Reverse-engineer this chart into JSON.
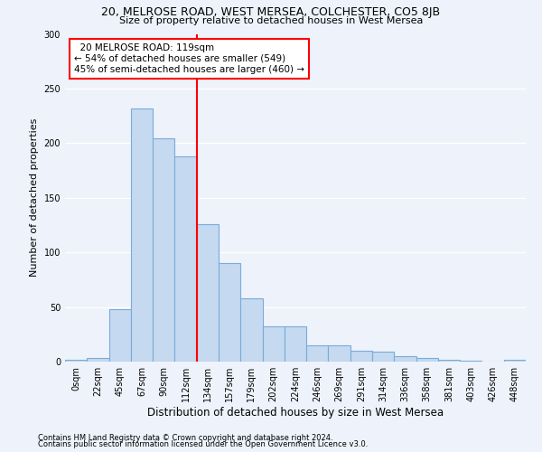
{
  "title1": "20, MELROSE ROAD, WEST MERSEA, COLCHESTER, CO5 8JB",
  "title2": "Size of property relative to detached houses in West Mersea",
  "xlabel": "Distribution of detached houses by size in West Mersea",
  "ylabel": "Number of detached properties",
  "footnote1": "Contains HM Land Registry data © Crown copyright and database right 2024.",
  "footnote2": "Contains public sector information licensed under the Open Government Licence v3.0.",
  "annotation_line1": "  20 MELROSE ROAD: 119sqm",
  "annotation_line2": "← 54% of detached houses are smaller (549)",
  "annotation_line3": "45% of semi-detached houses are larger (460) →",
  "bar_labels": [
    "0sqm",
    "22sqm",
    "45sqm",
    "67sqm",
    "90sqm",
    "112sqm",
    "134sqm",
    "157sqm",
    "179sqm",
    "202sqm",
    "224sqm",
    "246sqm",
    "269sqm",
    "291sqm",
    "314sqm",
    "336sqm",
    "358sqm",
    "381sqm",
    "403sqm",
    "426sqm",
    "448sqm"
  ],
  "bar_values": [
    2,
    3,
    48,
    232,
    204,
    188,
    126,
    90,
    58,
    32,
    32,
    15,
    15,
    10,
    9,
    5,
    3,
    2,
    1,
    0,
    2
  ],
  "bar_color": "#c5d9f0",
  "bar_edge_color": "#7aabda",
  "vline_x": 5.5,
  "vline_color": "red",
  "ylim": [
    0,
    300
  ],
  "yticks": [
    0,
    50,
    100,
    150,
    200,
    250,
    300
  ],
  "background_color": "#edf2fb",
  "grid_color": "#ffffff",
  "annotation_box_color": "white",
  "annotation_box_edge": "red"
}
